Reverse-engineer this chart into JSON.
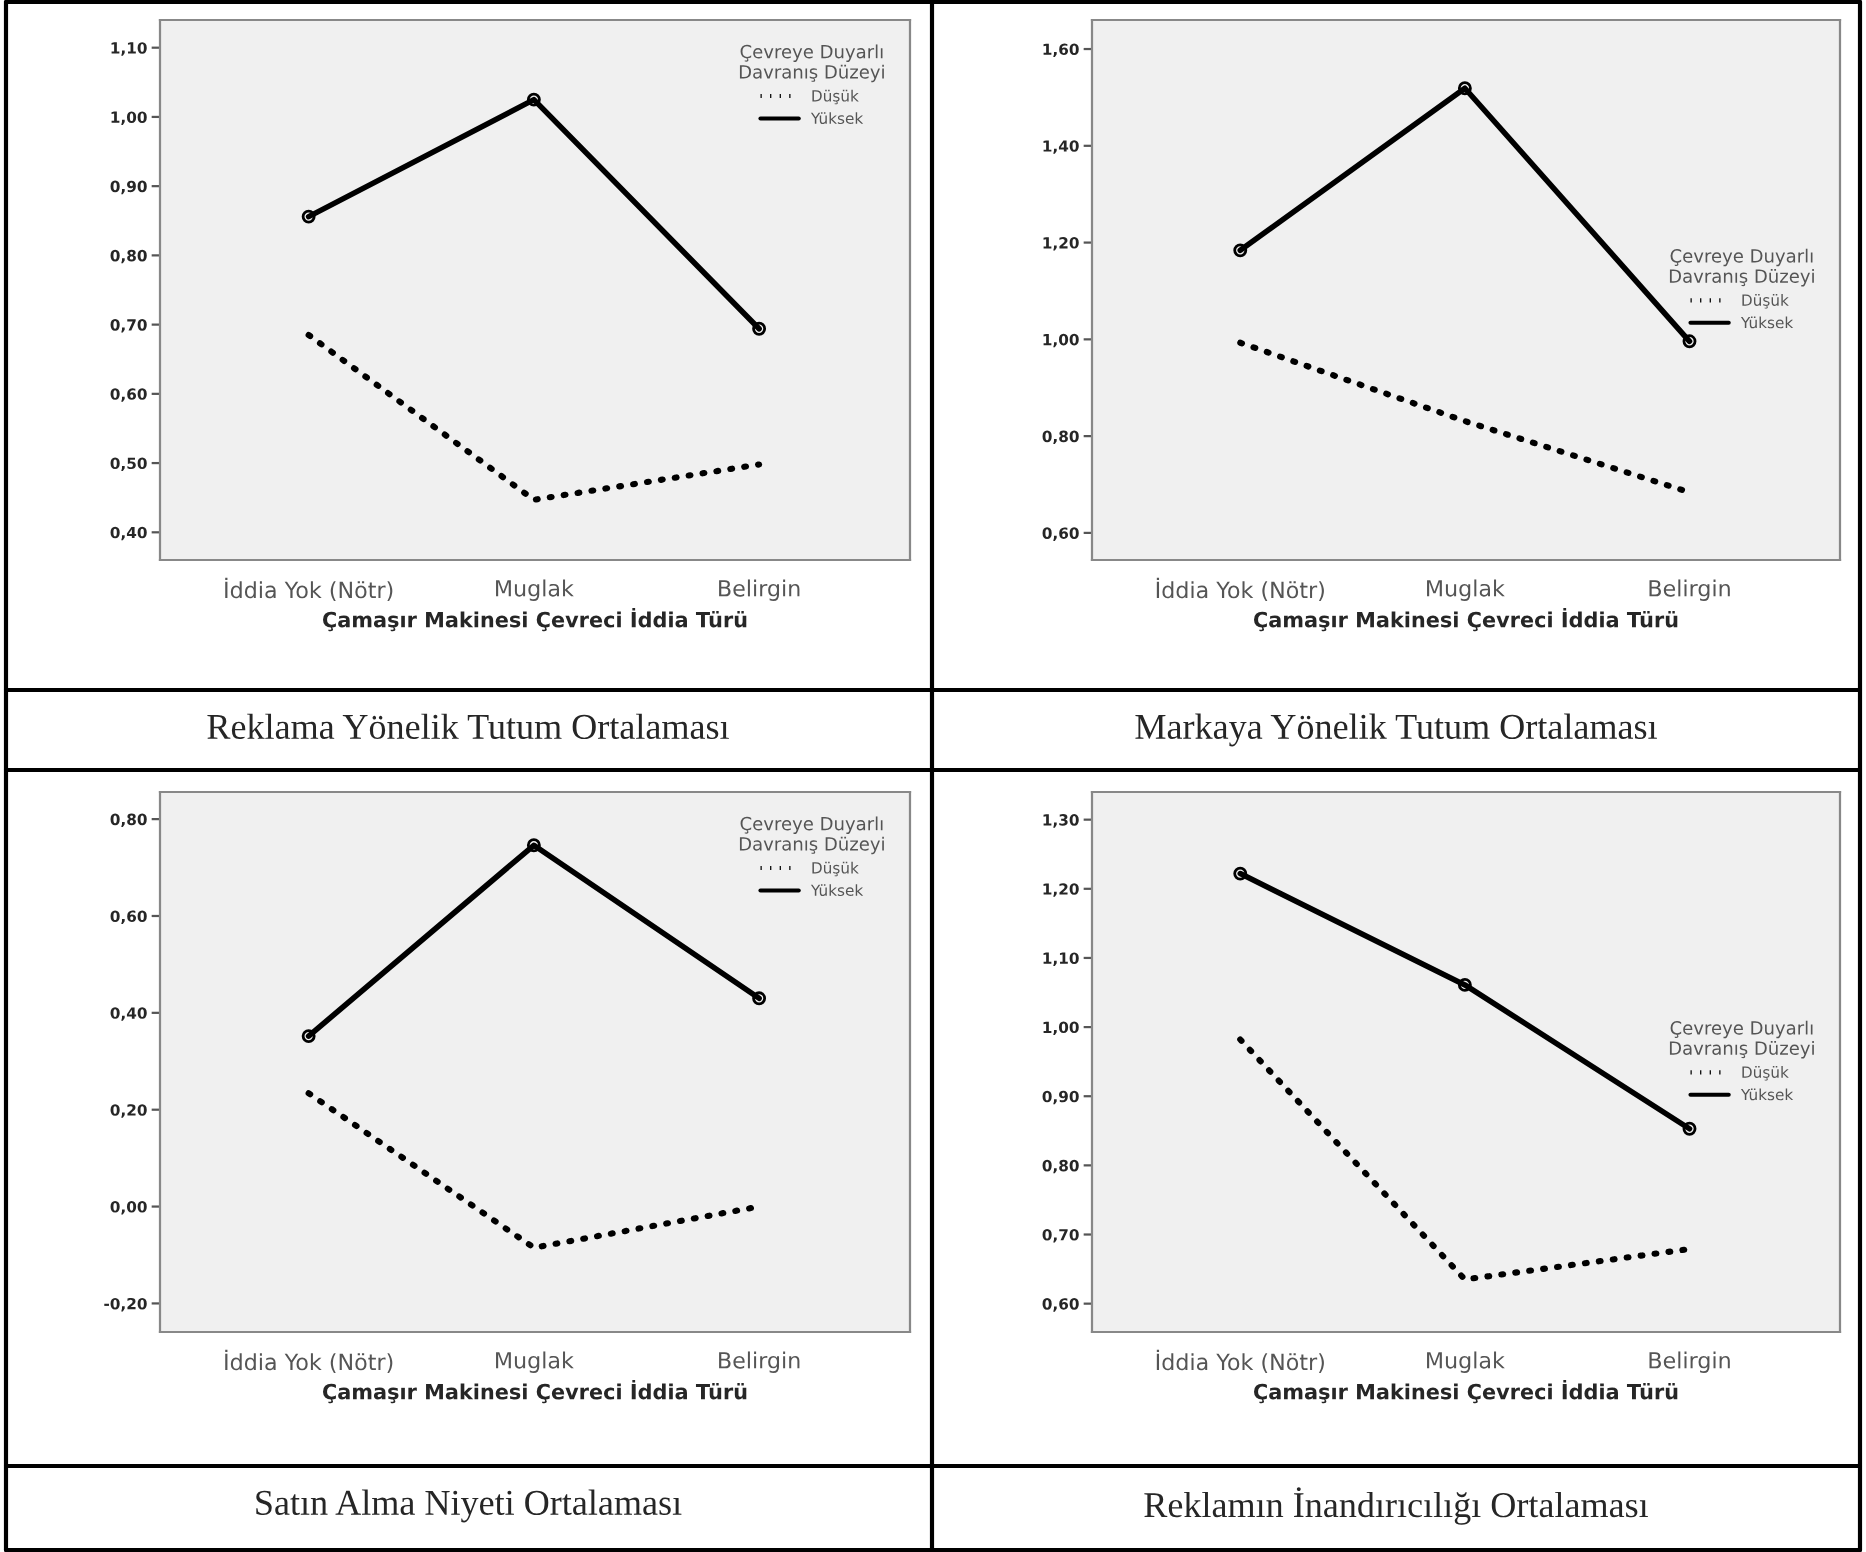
{
  "chart_data": [
    {
      "type": "line",
      "xlabel": "Çamaşır Makinesi Çevreci İddia Türü",
      "legend_title": "Çevreye Duyarlı\nDavranış Düzeyi",
      "legend": "top right",
      "categories": [
        "İddia Yok (Nötr)",
        "Muglak",
        "Belirgin"
      ],
      "ylim": [
        0.36,
        1.14
      ],
      "yticks": [
        {
          "value": 0.4,
          "label": "0,40"
        },
        {
          "value": 0.5,
          "label": "0,50"
        },
        {
          "value": 0.6,
          "label": "0,60"
        },
        {
          "value": 0.7,
          "label": "0,70"
        },
        {
          "value": 0.8,
          "label": "0,80"
        },
        {
          "value": 0.9,
          "label": "0,90"
        },
        {
          "value": 1.0,
          "label": "1,00"
        },
        {
          "value": 1.1,
          "label": "1,10"
        }
      ],
      "annotations": [
        "Reklama Yönelik Tutum Ortalaması"
      ],
      "series": [
        {
          "name": "Düşük",
          "color": "#000000",
          "line_style": "dotted",
          "marker": "none",
          "values": [
            0.685,
            0.447,
            0.498
          ]
        },
        {
          "name": "Yüksek",
          "color": "#000000",
          "line_style": "solid",
          "marker": "circle",
          "values": [
            0.856,
            1.025,
            0.694
          ]
        }
      ]
    },
    {
      "type": "line",
      "xlabel": "Çamaşır Makinesi Çevreci İddia Türü",
      "legend_title": "Çevreye Duyarlı\nDavranış Düzeyi",
      "legend": "right",
      "categories": [
        "İddia Yok (Nötr)",
        "Muglak",
        "Belirgin"
      ],
      "ylim": [
        0.544,
        1.66
      ],
      "yticks": [
        {
          "value": 0.6,
          "label": "0,60"
        },
        {
          "value": 0.8,
          "label": "0,80"
        },
        {
          "value": 1.0,
          "label": "1,00"
        },
        {
          "value": 1.2,
          "label": "1,20"
        },
        {
          "value": 1.4,
          "label": "1,40"
        },
        {
          "value": 1.6,
          "label": "1,60"
        }
      ],
      "annotations": [
        "Markaya Yönelik Tutum Ortalaması"
      ],
      "series": [
        {
          "name": "Düşük",
          "color": "#000000",
          "line_style": "dotted",
          "marker": "none",
          "values": [
            0.993,
            0.831,
            0.684
          ]
        },
        {
          "name": "Yüksek",
          "color": "#000000",
          "line_style": "solid",
          "marker": "circle",
          "values": [
            1.184,
            1.519,
            0.996
          ]
        }
      ]
    },
    {
      "type": "line",
      "xlabel": "Çamaşır Makinesi Çevreci İddia Türü",
      "legend_title": "Çevreye Duyarlı\nDavranış Düzeyi",
      "legend": "top right",
      "categories": [
        "İddia Yok (Nötr)",
        "Muglak",
        "Belirgin"
      ],
      "ylim": [
        -0.259,
        0.856
      ],
      "yticks": [
        {
          "value": -0.2,
          "label": "-0,20"
        },
        {
          "value": 0.0,
          "label": "0,00"
        },
        {
          "value": 0.2,
          "label": "0,20"
        },
        {
          "value": 0.4,
          "label": "0,40"
        },
        {
          "value": 0.6,
          "label": "0,60"
        },
        {
          "value": 0.8,
          "label": "0,80"
        }
      ],
      "annotations": [
        "Satın Alma Niyeti Ortalaması"
      ],
      "series": [
        {
          "name": "Düşük",
          "color": "#000000",
          "line_style": "dotted",
          "marker": "none",
          "values": [
            0.234,
            -0.085,
            0.0
          ]
        },
        {
          "name": "Yüksek",
          "color": "#000000",
          "line_style": "solid",
          "marker": "circle",
          "values": [
            0.352,
            0.746,
            0.43
          ]
        }
      ]
    },
    {
      "type": "line",
      "xlabel": "Çamaşır Makinesi Çevreci İddia Türü",
      "legend_title": "Çevreye Duyarlı\nDavranış Düzeyi",
      "legend": "right",
      "categories": [
        "İddia Yok (Nötr)",
        "Muglak",
        "Belirgin"
      ],
      "ylim": [
        0.559,
        1.34
      ],
      "yticks": [
        {
          "value": 0.6,
          "label": "0,60"
        },
        {
          "value": 0.7,
          "label": "0,70"
        },
        {
          "value": 0.8,
          "label": "0,80"
        },
        {
          "value": 0.9,
          "label": "0,90"
        },
        {
          "value": 1.0,
          "label": "1,00"
        },
        {
          "value": 1.1,
          "label": "1,10"
        },
        {
          "value": 1.2,
          "label": "1,20"
        },
        {
          "value": 1.3,
          "label": "1,30"
        }
      ],
      "annotations": [
        "Reklamın İnandırıcılığı Ortalaması"
      ],
      "series": [
        {
          "name": "Düşük",
          "color": "#000000",
          "line_style": "dotted",
          "marker": "none",
          "values": [
            0.982,
            0.635,
            0.679
          ]
        },
        {
          "name": "Yüksek",
          "color": "#000000",
          "line_style": "solid",
          "marker": "circle",
          "values": [
            1.222,
            1.061,
            0.853
          ]
        }
      ]
    }
  ]
}
